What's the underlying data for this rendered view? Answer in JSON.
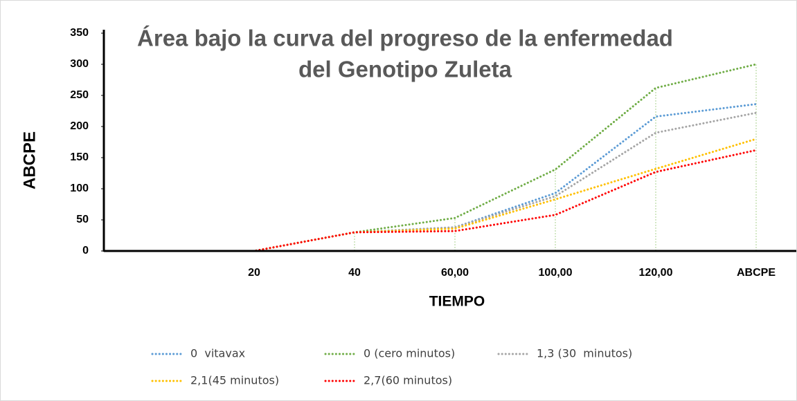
{
  "chart_data": {
    "type": "line",
    "title": [
      "Área bajo la curva del progreso de la enfermedad",
      "del Genotipo Zuleta"
    ],
    "x_label": "TIEMPO",
    "y_label": "ABCPE",
    "categories": [
      null,
      "20",
      "40",
      "60,00",
      "100,00",
      "120,00",
      "ABCPE"
    ],
    "series": [
      {
        "name": "0  vitavax",
        "color": "#5b9bd5",
        "values": [
          0,
          0,
          30,
          38,
          93,
          216,
          236
        ]
      },
      {
        "name": "0 (cero minutos)",
        "color": "#70ad47",
        "values": [
          0,
          0,
          30,
          53,
          131,
          262,
          300
        ]
      },
      {
        "name": "1,3 (30  minutos)",
        "color": "#a5a5a5",
        "values": [
          0,
          0,
          30,
          38,
          88,
          190,
          222
        ]
      },
      {
        "name": "2,1(45 minutos)",
        "color": "#ffc000",
        "values": [
          0,
          0,
          30,
          36,
          83,
          132,
          180
        ]
      },
      {
        "name": "2,7(60 minutos)",
        "color": "#ff0000",
        "values": [
          0,
          0,
          30,
          32,
          58,
          127,
          162
        ]
      }
    ],
    "ylim": [
      0,
      350
    ],
    "yticks": [
      0,
      50,
      100,
      150,
      200,
      250,
      300,
      350
    ],
    "drop_lines": true,
    "legend": "bottom"
  }
}
